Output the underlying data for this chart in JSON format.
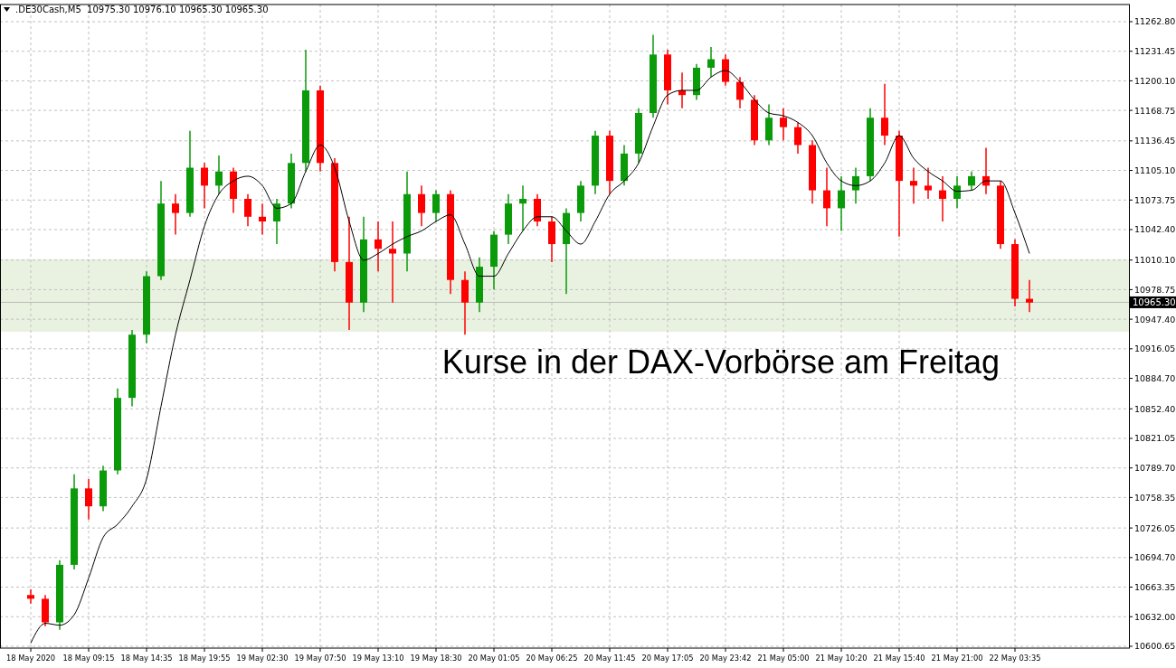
{
  "chart_data": {
    "type": "candlestick",
    "title": ".DE30Cash,M5  10975.30 10976.10 10965.30 10965.30",
    "categories": [
      "18 May 2020",
      null,
      null,
      null,
      "18 May 09:15",
      null,
      null,
      null,
      "18 May 14:35",
      null,
      null,
      null,
      "18 May 19:55",
      null,
      null,
      null,
      "19 May 02:30",
      null,
      null,
      null,
      "19 May 07:50",
      null,
      null,
      null,
      "19 May 13:10",
      null,
      null,
      null,
      "19 May 18:30",
      null,
      null,
      null,
      "20 May 01:05",
      null,
      null,
      null,
      "20 May 06:25",
      null,
      null,
      null,
      "20 May 11:45",
      null,
      null,
      null,
      "20 May 17:05",
      null,
      null,
      null,
      "20 May 23:42",
      null,
      null,
      null,
      "21 May 05:00",
      null,
      null,
      null,
      "21 May 10:20",
      null,
      null,
      null,
      "21 May 15:40",
      null,
      null,
      null,
      "21 May 21:00",
      null,
      null,
      null,
      "22 May 03:35",
      null,
      null,
      null,
      null,
      null,
      null,
      null
    ],
    "ohlc": [
      [
        10655,
        10661,
        10646,
        10651
      ],
      [
        10651,
        10655,
        10622,
        10626
      ],
      [
        10626,
        10692,
        10618,
        10687
      ],
      [
        10687,
        10783,
        10682,
        10768
      ],
      [
        10768,
        10778,
        10735,
        10749
      ],
      [
        10749,
        10792,
        10744,
        10787
      ],
      [
        10787,
        10874,
        10783,
        10864
      ],
      [
        10864,
        10936,
        10855,
        10931
      ],
      [
        10931,
        10998,
        10922,
        10993
      ],
      [
        10993,
        11094,
        10989,
        11070
      ],
      [
        11070,
        11080,
        11037,
        11060
      ],
      [
        11060,
        11147,
        11056,
        11108
      ],
      [
        11108,
        11113,
        11065,
        11089
      ],
      [
        11089,
        11121,
        11080,
        11104
      ],
      [
        11104,
        11108,
        11060,
        11075
      ],
      [
        11075,
        11080,
        11046,
        11056
      ],
      [
        11056,
        11070,
        11037,
        11051
      ],
      [
        11051,
        11075,
        11027,
        11070
      ],
      [
        11070,
        11123,
        11065,
        11113
      ],
      [
        11113,
        11233,
        11104,
        11190
      ],
      [
        11190,
        11195,
        11104,
        11113
      ],
      [
        11113,
        11118,
        10998,
        11008
      ],
      [
        11008,
        11056,
        10936,
        10965
      ],
      [
        10965,
        11056,
        10955,
        11032
      ],
      [
        11032,
        11051,
        10998,
        11022
      ],
      [
        11022,
        11051,
        10965,
        11017
      ],
      [
        11017,
        11104,
        10998,
        11080
      ],
      [
        11080,
        11089,
        11046,
        11060
      ],
      [
        11060,
        11084,
        11051,
        11080
      ],
      [
        11080,
        11084,
        10974,
        10989
      ],
      [
        10989,
        10998,
        10931,
        10965
      ],
      [
        10965,
        11013,
        10955,
        11003
      ],
      [
        11003,
        11041,
        10979,
        11037
      ],
      [
        11037,
        11080,
        11027,
        11070
      ],
      [
        11070,
        11089,
        11041,
        11075
      ],
      [
        11075,
        11080,
        11046,
        11051
      ],
      [
        11051,
        11056,
        11008,
        11027
      ],
      [
        11027,
        11065,
        10974,
        11060
      ],
      [
        11060,
        11094,
        11051,
        11089
      ],
      [
        11089,
        11147,
        11080,
        11142
      ],
      [
        11142,
        11147,
        11080,
        11094
      ],
      [
        11094,
        11132,
        11089,
        11123
      ],
      [
        11123,
        11171,
        11113,
        11166
      ],
      [
        11166,
        11249,
        11161,
        11228
      ],
      [
        11228,
        11233,
        11175,
        11190
      ],
      [
        11190,
        11209,
        11171,
        11185
      ],
      [
        11185,
        11218,
        11180,
        11214
      ],
      [
        11214,
        11236,
        11204,
        11223
      ],
      [
        11223,
        11228,
        11195,
        11199
      ],
      [
        11199,
        11204,
        11171,
        11180
      ],
      [
        11180,
        11185,
        11132,
        11137
      ],
      [
        11137,
        11175,
        11132,
        11161
      ],
      [
        11161,
        11171,
        11137,
        11151
      ],
      [
        11151,
        11156,
        11123,
        11132
      ],
      [
        11132,
        11137,
        11070,
        11084
      ],
      [
        11084,
        11108,
        11046,
        11065
      ],
      [
        11065,
        11099,
        11041,
        11084
      ],
      [
        11084,
        11108,
        11070,
        11099
      ],
      [
        11099,
        11171,
        11094,
        11161
      ],
      [
        11161,
        11197,
        11132,
        11142
      ],
      [
        11142,
        11147,
        11035,
        11094
      ],
      [
        11094,
        11108,
        11070,
        11089
      ],
      [
        11089,
        11108,
        11075,
        11084
      ],
      [
        11084,
        11099,
        11051,
        11075
      ],
      [
        11075,
        11099,
        11065,
        11089
      ],
      [
        11089,
        11104,
        11084,
        11099
      ],
      [
        11099,
        11129,
        11080,
        11089
      ],
      [
        11089,
        11094,
        11022,
        11027
      ],
      [
        11027,
        11032,
        10961,
        10969
      ],
      [
        10969,
        10989,
        10955,
        10965
      ],
      null,
      null,
      null,
      null,
      null,
      null
    ],
    "colors": [
      "#ff0000",
      "#ff0000",
      "#0a9a0a",
      "#0a9a0a",
      "#ff0000",
      "#0a9a0a",
      "#0a9a0a",
      "#0a9a0a",
      "#0a9a0a",
      "#0a9a0a",
      "#ff0000",
      "#0a9a0a",
      "#ff0000",
      "#0a9a0a",
      "#ff0000",
      "#ff0000",
      "#ff0000",
      "#0a9a0a",
      "#0a9a0a",
      "#0a9a0a",
      "#ff0000",
      "#ff0000",
      "#ff0000",
      "#0a9a0a",
      "#ff0000",
      "#ff0000",
      "#0a9a0a",
      "#ff0000",
      "#0a9a0a",
      "#ff0000",
      "#ff0000",
      "#0a9a0a",
      "#0a9a0a",
      "#0a9a0a",
      "#0a9a0a",
      "#ff0000",
      "#ff0000",
      "#0a9a0a",
      "#0a9a0a",
      "#0a9a0a",
      "#ff0000",
      "#0a9a0a",
      "#0a9a0a",
      "#0a9a0a",
      "#ff0000",
      "#ff0000",
      "#0a9a0a",
      "#0a9a0a",
      "#ff0000",
      "#ff0000",
      "#ff0000",
      "#0a9a0a",
      "#ff0000",
      "#ff0000",
      "#ff0000",
      "#ff0000",
      "#0a9a0a",
      "#0a9a0a",
      "#0a9a0a",
      "#ff0000",
      "#ff0000",
      "#ff0000",
      "#ff0000",
      "#ff0000",
      "#0a9a0a",
      "#0a9a0a",
      "#ff0000",
      "#ff0000",
      "#ff0000",
      "#ff0000",
      null,
      null,
      null,
      null,
      null,
      null
    ],
    "series": [
      {
        "type": "line",
        "color": "#000000",
        "values": [
          10604,
          10625,
          10623,
          10634,
          10673,
          10716,
          10730,
          10749,
          10778,
          10855,
          10931,
          10989,
          11046,
          11080,
          11094,
          11099,
          11089,
          11065,
          11070,
          11104,
          11132,
          11108,
          11051,
          11010,
          11017,
          11027,
          11035,
          11041,
          11051,
          11058,
          11027,
          10993,
          10993,
          11017,
          11041,
          11056,
          11056,
          11041,
          11027,
          11051,
          11080,
          11094,
          11113,
          11152,
          11185,
          11190,
          11190,
          11204,
          11211,
          11199,
          11180,
          11166,
          11163,
          11156,
          11142,
          11113,
          11094,
          11089,
          11094,
          11113,
          11142,
          11118,
          11104,
          11094,
          11083,
          11084,
          11094,
          11094,
          11060,
          11017,
          null,
          null,
          null,
          null,
          null,
          null
        ]
      }
    ],
    "ylim": [
      10598.7,
      11281
    ],
    "yticks": [
      {
        "value": 10600.65,
        "label": "10600.65"
      },
      {
        "value": 10632,
        "label": "10632.00"
      },
      {
        "value": 10663.35,
        "label": "10663.35"
      },
      {
        "value": 10694.7,
        "label": "10694.70"
      },
      {
        "value": 10726.05,
        "label": "10726.05"
      },
      {
        "value": 10758.35,
        "label": "10758.35"
      },
      {
        "value": 10789.7,
        "label": "10789.70"
      },
      {
        "value": 10821.05,
        "label": "10821.05"
      },
      {
        "value": 10852.4,
        "label": "10852.40"
      },
      {
        "value": 10884.7,
        "label": "10884.70"
      },
      {
        "value": 10916.05,
        "label": "10916.05"
      },
      {
        "value": 10947.4,
        "label": "10947.40"
      },
      {
        "value": 10978.75,
        "label": "10978.75"
      },
      {
        "value": 11010.1,
        "label": "11010.10"
      },
      {
        "value": 11042.4,
        "label": "11042.40"
      },
      {
        "value": 11073.75,
        "label": "11073.75"
      },
      {
        "value": 11105.1,
        "label": "11105.10"
      },
      {
        "value": 11136.45,
        "label": "11136.45"
      },
      {
        "value": 11168.75,
        "label": "11168.75"
      },
      {
        "value": 11200.1,
        "label": "11200.10"
      },
      {
        "value": 11231.45,
        "label": "11231.45"
      },
      {
        "value": 11262.8,
        "label": "11262.80"
      }
    ],
    "grid": true,
    "bands": [
      {
        "axis": "y",
        "from": 10934,
        "to": 11011,
        "color": "#e9f2e1"
      }
    ],
    "ref_lines": [
      {
        "axis": "y",
        "value": 10965.3,
        "label": "10965.30",
        "color": "#b8bdb4"
      }
    ],
    "annotations": [
      "Kurse in der DAX-Vorbörse am Freitag"
    ]
  }
}
